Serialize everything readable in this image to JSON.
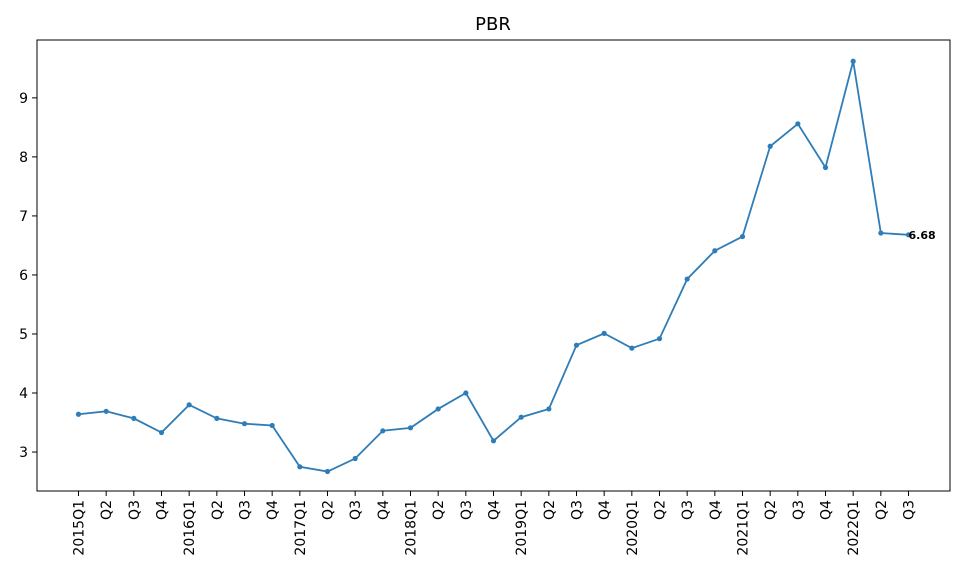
{
  "chart_data": {
    "type": "line",
    "title": "PBR",
    "categories": [
      "2015Q1",
      "Q2",
      "Q3",
      "Q4",
      "2016Q1",
      "Q2",
      "Q3",
      "Q4",
      "2017Q1",
      "Q2",
      "Q3",
      "Q4",
      "2018Q1",
      "Q2",
      "Q3",
      "Q4",
      "2019Q1",
      "Q2",
      "Q3",
      "Q4",
      "2020Q1",
      "Q2",
      "Q3",
      "Q4",
      "2021Q1",
      "Q2",
      "Q3",
      "Q4",
      "2022Q1",
      "Q2",
      "Q3"
    ],
    "values": [
      3.64,
      3.69,
      3.57,
      3.33,
      3.8,
      3.57,
      3.48,
      3.45,
      2.75,
      2.67,
      2.89,
      3.36,
      3.41,
      3.73,
      4.0,
      3.19,
      3.59,
      3.73,
      4.81,
      5.01,
      4.76,
      4.92,
      5.93,
      6.41,
      6.65,
      8.18,
      8.56,
      7.82,
      9.62,
      6.71,
      6.68
    ],
    "color": "#2f7db8",
    "ylim": [
      2.34,
      9.98
    ],
    "yticks": [
      3,
      4,
      5,
      6,
      7,
      8,
      9
    ],
    "grid": false,
    "label_last": true,
    "label_color": "#f05050"
  }
}
